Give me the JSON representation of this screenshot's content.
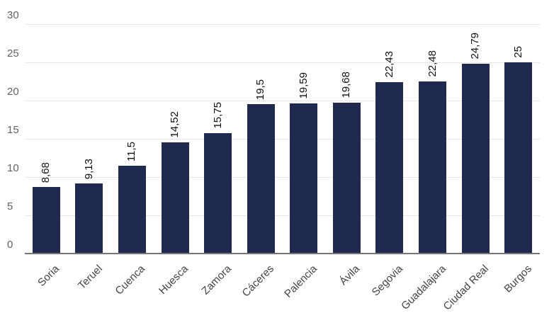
{
  "chart_data": {
    "type": "bar",
    "title": "",
    "xlabel": "",
    "ylabel": "",
    "categories": [
      "Soria",
      "Teruel",
      "Cuenca",
      "Huesca",
      "Zamora",
      "Cáceres",
      "Palencia",
      "Ávila",
      "Segovia",
      "Guadalajara",
      "Ciudad Real",
      "Burgos"
    ],
    "values": [
      8.68,
      9.13,
      11.5,
      14.52,
      15.75,
      19.5,
      19.59,
      19.68,
      22.43,
      22.48,
      24.79,
      25
    ],
    "value_labels": [
      "8,68",
      "9,13",
      "11,5",
      "14,52",
      "15,75",
      "19,5",
      "19,59",
      "19,68",
      "22,43",
      "22,48",
      "24,79",
      "25"
    ],
    "ylim": [
      0,
      30
    ],
    "yticks": [
      0,
      5,
      10,
      15,
      20,
      25,
      30
    ],
    "grid": true,
    "legend": "none",
    "colors": {
      "bar": "#1f2a4e",
      "gridline": "#e6e6e6",
      "baseline": "#757575",
      "ytick_text": "#616161",
      "xtick_text": "#444444",
      "value_label_text": "#111111",
      "background": "#ffffff"
    }
  }
}
